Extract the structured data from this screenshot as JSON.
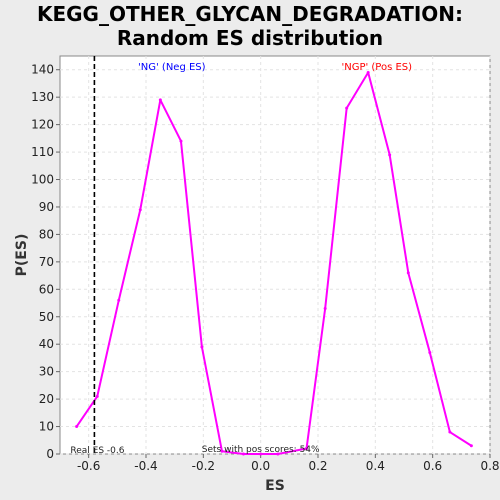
{
  "chart_data": {
    "type": "line",
    "title_line1": "KEGG_OTHER_GLYCAN_DEGRADATION:",
    "title_line2": "Random ES distribution",
    "xlabel": "ES",
    "ylabel": "P(ES)",
    "xlim": [
      -0.7,
      0.8
    ],
    "ylim": [
      0,
      145
    ],
    "x_ticks": [
      -0.6,
      -0.4,
      -0.2,
      0.0,
      0.2,
      0.4,
      0.6,
      0.8
    ],
    "x_tick_labels": [
      "-0.6",
      "-0.4",
      "-0.2",
      "0.0",
      "0.2",
      "0.4",
      "0.6",
      "0.8"
    ],
    "y_ticks": [
      0,
      10,
      20,
      30,
      40,
      50,
      60,
      70,
      80,
      90,
      100,
      110,
      120,
      130,
      140
    ],
    "grid": true,
    "series": [
      {
        "color": "#ff00ff",
        "x": [
          -0.642,
          -0.57,
          -0.495,
          -0.42,
          -0.35,
          -0.278,
          -0.205,
          -0.135,
          -0.06,
          0.0,
          0.06,
          0.16,
          0.225,
          0.3,
          0.375,
          0.45,
          0.515,
          0.59,
          0.66,
          0.735
        ],
        "y": [
          10,
          21,
          56,
          89,
          129,
          114,
          39,
          1,
          0,
          0,
          0,
          2,
          53,
          126,
          139,
          109,
          66,
          37,
          8,
          3
        ]
      }
    ],
    "real_es": -0.58,
    "real_es_label": "Real ES -0.6",
    "neg_label": "'NG' (Neg ES)",
    "pos_label": "'NGP' (Pos ES)",
    "neg_color": "#0000ff",
    "pos_color": "#ff0000",
    "pos_score_text": "Sets with pos scores: 54%"
  }
}
